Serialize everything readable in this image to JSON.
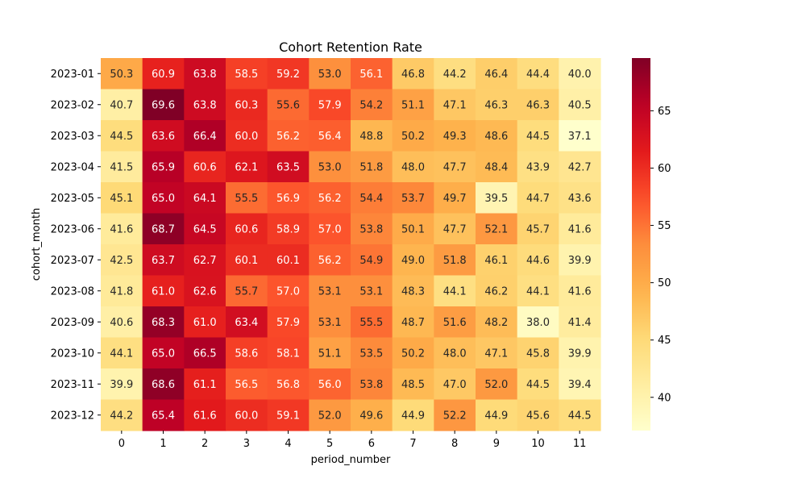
{
  "chart_data": {
    "type": "heatmap",
    "title": "Cohort Retention Rate",
    "xlabel": "period_number",
    "ylabel": "cohort_month",
    "x_categories": [
      "0",
      "1",
      "2",
      "3",
      "4",
      "5",
      "6",
      "7",
      "8",
      "9",
      "10",
      "11"
    ],
    "y_categories": [
      "2023-01",
      "2023-02",
      "2023-03",
      "2023-04",
      "2023-05",
      "2023-06",
      "2023-07",
      "2023-08",
      "2023-09",
      "2023-10",
      "2023-11",
      "2023-12"
    ],
    "values": [
      [
        50.3,
        60.9,
        63.8,
        58.5,
        59.2,
        53.0,
        56.1,
        46.8,
        44.2,
        46.4,
        44.4,
        40.0
      ],
      [
        40.7,
        69.6,
        63.8,
        60.3,
        55.6,
        57.9,
        54.2,
        51.1,
        47.1,
        46.3,
        46.3,
        40.5
      ],
      [
        44.5,
        63.6,
        66.4,
        60.0,
        56.2,
        56.4,
        48.8,
        50.2,
        49.3,
        48.6,
        44.5,
        37.1
      ],
      [
        41.5,
        65.9,
        60.6,
        62.1,
        63.5,
        53.0,
        51.8,
        48.0,
        47.7,
        48.4,
        43.9,
        42.7
      ],
      [
        45.1,
        65.0,
        64.1,
        55.5,
        56.9,
        56.2,
        54.4,
        53.7,
        49.7,
        39.5,
        44.7,
        43.6
      ],
      [
        41.6,
        68.7,
        64.5,
        60.6,
        58.9,
        57.0,
        53.8,
        50.1,
        47.7,
        52.1,
        45.7,
        41.6
      ],
      [
        42.5,
        63.7,
        62.7,
        60.1,
        60.1,
        56.2,
        54.9,
        49.0,
        51.8,
        46.1,
        44.6,
        39.9
      ],
      [
        41.8,
        61.0,
        62.6,
        55.7,
        57.0,
        53.1,
        53.1,
        48.3,
        44.1,
        46.2,
        44.1,
        41.6
      ],
      [
        40.6,
        68.3,
        61.0,
        63.4,
        57.9,
        53.1,
        55.5,
        48.7,
        51.6,
        48.2,
        38.0,
        41.4
      ],
      [
        44.1,
        65.0,
        66.5,
        58.6,
        58.1,
        51.1,
        53.5,
        50.2,
        48.0,
        47.1,
        45.8,
        39.9
      ],
      [
        39.9,
        68.6,
        61.1,
        56.5,
        56.8,
        56.0,
        53.8,
        48.5,
        47.0,
        52.0,
        44.5,
        39.4
      ],
      [
        44.2,
        65.4,
        61.6,
        60.0,
        59.1,
        52.0,
        49.6,
        44.9,
        52.2,
        44.9,
        45.6,
        44.5
      ]
    ],
    "value_format": "one decimal",
    "vmin": 37.1,
    "vmax": 69.6,
    "colormap": "YlOrRd",
    "colorbar_ticks": [
      40,
      45,
      50,
      55,
      60,
      65
    ],
    "grid": false,
    "legend": "colorbar-right"
  }
}
